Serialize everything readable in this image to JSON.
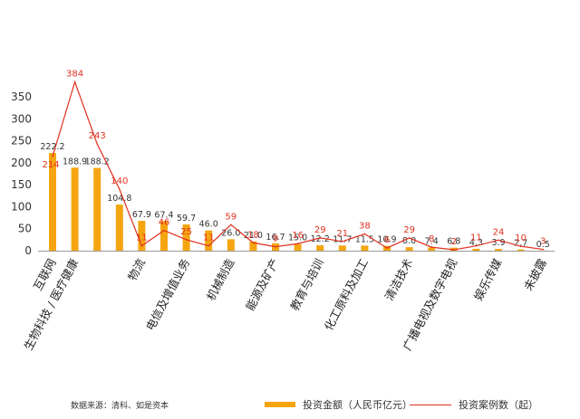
{
  "chart_data": {
    "type": "bar",
    "categories": [
      "互联网",
      "生物科技 / 医疗健康",
      "",
      "",
      "物流",
      "",
      "电信及增值业务",
      "",
      "机械制造",
      "",
      "能源及矿产",
      "",
      "教育与培训",
      "",
      "化工原料及加工",
      "",
      "清洁技术",
      "",
      "广播电视及数字电视",
      "",
      "娱乐传媒",
      "",
      "未披露"
    ],
    "series": [
      {
        "name": "投资金额（人民币亿元）",
        "type": "bar",
        "values": [
          222.2,
          188.9,
          188.2,
          104.8,
          67.9,
          67.4,
          59.7,
          46.0,
          26.0,
          21.0,
          16.7,
          15.0,
          12.2,
          11.7,
          11.5,
          10.9,
          8.0,
          7.4,
          6.8,
          4.3,
          3.9,
          2.7,
          0.5
        ],
        "value_labels": [
          "222.2",
          "188.9",
          "188.2",
          "104.8",
          "67.9",
          "67.4",
          "59.7",
          "46.0",
          "26.0",
          "21.0",
          "16.7",
          "15.0",
          "12.2",
          "11.7",
          "11.5",
          "10.9",
          "8.0",
          "7.4",
          "6.8",
          "4.3",
          "3.9",
          "2.7",
          "0.5"
        ]
      },
      {
        "name": "投资案例数（起）",
        "type": "line",
        "values": [
          214,
          384,
          243,
          140,
          11,
          46,
          25,
          11,
          59,
          18,
          9,
          16,
          29,
          21,
          38,
          6,
          29,
          8,
          2,
          11,
          24,
          10,
          3
        ]
      }
    ],
    "yticks": [
      0,
      50,
      100,
      150,
      200,
      250,
      300,
      350
    ],
    "ylim": [
      0,
      380
    ],
    "grid": false,
    "legend_position": "bottom-right",
    "colors": {
      "bar": "#f5a511",
      "line": "#e0301e"
    }
  },
  "source_text": "数据来源：清科、如是资本"
}
